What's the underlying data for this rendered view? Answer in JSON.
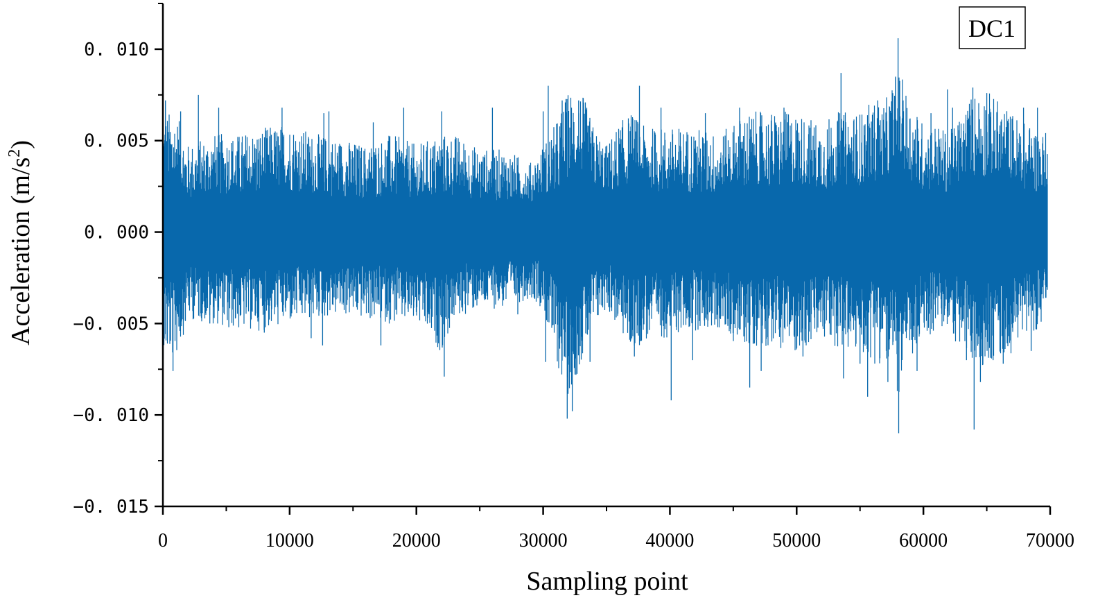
{
  "chart_data": {
    "type": "line",
    "title": "",
    "xlabel": "Sampling point",
    "ylabel": "Acceleration (m/s",
    "ylabel_sup": "2",
    "ylabel_tail": ")",
    "xlim": [
      0,
      70000
    ],
    "ylim": [
      -0.015,
      0.0125
    ],
    "x_ticks": [
      0,
      10000,
      20000,
      30000,
      40000,
      50000,
      60000,
      70000
    ],
    "x_tick_labels": [
      "0",
      "10000",
      "20000",
      "30000",
      "40000",
      "50000",
      "60000",
      "70000"
    ],
    "y_ticks": [
      -0.015,
      -0.01,
      -0.005,
      0,
      0.005,
      0.01
    ],
    "y_tick_labels": [
      "−0. 015",
      "−0. 010",
      "−0. 005",
      "0. 000",
      "0. 005",
      "0. 010"
    ],
    "grid": false,
    "legend_position": "top-right",
    "series": [
      {
        "name": "DC1",
        "color": "#0868ac",
        "envelope_x": [
          0,
          1000,
          2000,
          4000,
          6000,
          8000,
          10000,
          12000,
          14000,
          16000,
          18000,
          20000,
          22000,
          23000,
          25000,
          27000,
          29000,
          30000,
          31000,
          32000,
          33000,
          34000,
          35000,
          36000,
          37000,
          38000,
          40000,
          42000,
          44000,
          45000,
          46000,
          48000,
          50000,
          52000,
          53000,
          54000,
          55000,
          56000,
          57000,
          58000,
          59000,
          60000,
          61000,
          62000,
          63000,
          64000,
          65000,
          66000,
          67000,
          68000,
          69000,
          69800
        ],
        "envelope_upper": [
          0.0055,
          0.0055,
          0.004,
          0.0045,
          0.0045,
          0.0048,
          0.005,
          0.0045,
          0.0043,
          0.004,
          0.0045,
          0.004,
          0.0045,
          0.0045,
          0.0038,
          0.0038,
          0.0032,
          0.004,
          0.005,
          0.0065,
          0.0065,
          0.0048,
          0.004,
          0.005,
          0.0055,
          0.0048,
          0.0048,
          0.0048,
          0.0045,
          0.005,
          0.0055,
          0.0055,
          0.0055,
          0.005,
          0.0055,
          0.0055,
          0.0055,
          0.006,
          0.006,
          0.0075,
          0.006,
          0.005,
          0.005,
          0.0045,
          0.0055,
          0.0065,
          0.0065,
          0.006,
          0.0055,
          0.005,
          0.0048,
          0.0045
        ],
        "envelope_lower": [
          -0.0058,
          -0.0058,
          -0.004,
          -0.0042,
          -0.0045,
          -0.0045,
          -0.0042,
          -0.004,
          -0.0038,
          -0.004,
          -0.0042,
          -0.0042,
          -0.0055,
          -0.004,
          -0.0035,
          -0.0035,
          -0.003,
          -0.0035,
          -0.006,
          -0.0075,
          -0.006,
          -0.0045,
          -0.0035,
          -0.0045,
          -0.0055,
          -0.005,
          -0.0048,
          -0.0045,
          -0.0045,
          -0.005,
          -0.0052,
          -0.0052,
          -0.0055,
          -0.005,
          -0.0052,
          -0.0055,
          -0.0055,
          -0.006,
          -0.006,
          -0.0075,
          -0.006,
          -0.005,
          -0.0045,
          -0.0045,
          -0.0055,
          -0.0062,
          -0.006,
          -0.0058,
          -0.0055,
          -0.0045,
          -0.0045,
          -0.0042
        ],
        "spikes": [
          {
            "x": 200,
            "y": 0.0072
          },
          {
            "x": 800,
            "y": -0.0076
          },
          {
            "x": 1400,
            "y": 0.0066
          },
          {
            "x": 2800,
            "y": 0.0075
          },
          {
            "x": 3700,
            "y": -0.005
          },
          {
            "x": 4400,
            "y": 0.0068
          },
          {
            "x": 5200,
            "y": -0.0052
          },
          {
            "x": 8000,
            "y": -0.0055
          },
          {
            "x": 9400,
            "y": 0.0068
          },
          {
            "x": 11700,
            "y": -0.0058
          },
          {
            "x": 12700,
            "y": 0.0065
          },
          {
            "x": 12600,
            "y": -0.0062
          },
          {
            "x": 13100,
            "y": 0.0066
          },
          {
            "x": 16600,
            "y": 0.006
          },
          {
            "x": 17200,
            "y": -0.0062
          },
          {
            "x": 19000,
            "y": 0.0068
          },
          {
            "x": 19800,
            "y": -0.0038
          },
          {
            "x": 21000,
            "y": -0.0045
          },
          {
            "x": 22000,
            "y": 0.0066
          },
          {
            "x": 22200,
            "y": -0.0079
          },
          {
            "x": 26000,
            "y": 0.0068
          },
          {
            "x": 28000,
            "y": -0.0045
          },
          {
            "x": 30000,
            "y": 0.0066
          },
          {
            "x": 30200,
            "y": -0.0071
          },
          {
            "x": 30400,
            "y": 0.008
          },
          {
            "x": 31500,
            "y": 0.0072
          },
          {
            "x": 31900,
            "y": -0.0102
          },
          {
            "x": 32300,
            "y": -0.0098
          },
          {
            "x": 32800,
            "y": 0.0072
          },
          {
            "x": 33700,
            "y": -0.0071
          },
          {
            "x": 37200,
            "y": -0.0068
          },
          {
            "x": 37600,
            "y": 0.008
          },
          {
            "x": 39300,
            "y": 0.0068
          },
          {
            "x": 40100,
            "y": -0.0092
          },
          {
            "x": 41800,
            "y": -0.007
          },
          {
            "x": 42800,
            "y": 0.0065
          },
          {
            "x": 45500,
            "y": 0.0068
          },
          {
            "x": 46300,
            "y": -0.0085
          },
          {
            "x": 47200,
            "y": -0.0076
          },
          {
            "x": 49000,
            "y": 0.0068
          },
          {
            "x": 50500,
            "y": -0.0068
          },
          {
            "x": 53500,
            "y": 0.0087
          },
          {
            "x": 53700,
            "y": -0.008
          },
          {
            "x": 55000,
            "y": -0.0072
          },
          {
            "x": 55600,
            "y": -0.009
          },
          {
            "x": 56400,
            "y": 0.0072
          },
          {
            "x": 57200,
            "y": -0.0082
          },
          {
            "x": 57800,
            "y": 0.0085
          },
          {
            "x": 58000,
            "y": 0.0106
          },
          {
            "x": 58050,
            "y": -0.011
          },
          {
            "x": 58400,
            "y": 0.0072
          },
          {
            "x": 59500,
            "y": -0.0076
          },
          {
            "x": 60600,
            "y": 0.0065
          },
          {
            "x": 61900,
            "y": 0.0078
          },
          {
            "x": 62300,
            "y": 0.0068
          },
          {
            "x": 63400,
            "y": -0.007
          },
          {
            "x": 63900,
            "y": 0.0079
          },
          {
            "x": 64000,
            "y": -0.0108
          },
          {
            "x": 64500,
            "y": -0.0082
          },
          {
            "x": 65000,
            "y": 0.0076
          },
          {
            "x": 65500,
            "y": -0.007
          },
          {
            "x": 66300,
            "y": -0.0072
          },
          {
            "x": 67900,
            "y": 0.0068
          },
          {
            "x": 68500,
            "y": -0.0065
          },
          {
            "x": 69000,
            "y": 0.0068
          }
        ]
      }
    ]
  }
}
